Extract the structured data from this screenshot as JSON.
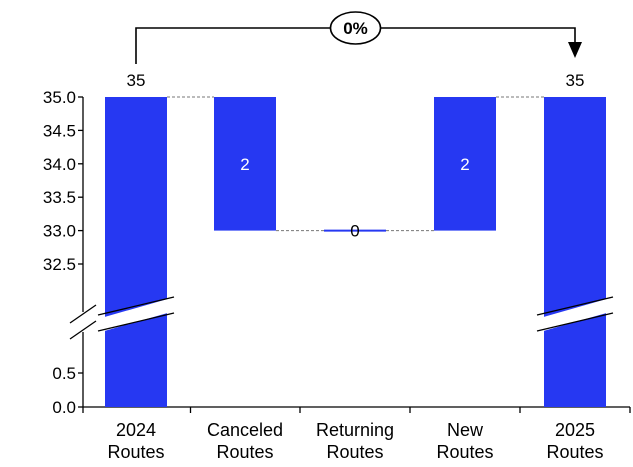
{
  "chart_data": {
    "type": "bar",
    "subtype": "waterfall-broken-axis",
    "title": "",
    "xlabel": "",
    "ylabel": "",
    "categories": [
      [
        "2024",
        "Routes"
      ],
      [
        "Canceled",
        "Routes"
      ],
      [
        "Returning",
        "Routes"
      ],
      [
        "New",
        "Routes"
      ],
      [
        "2025",
        "Routes"
      ]
    ],
    "steps": [
      {
        "kind": "total",
        "value": 35,
        "label": "35"
      },
      {
        "kind": "decrease",
        "value": 2,
        "label": "2"
      },
      {
        "kind": "increase",
        "value": 0,
        "label": "0"
      },
      {
        "kind": "increase",
        "value": 2,
        "label": "2"
      },
      {
        "kind": "total",
        "value": 35,
        "label": "35"
      }
    ],
    "y_ticks_upper": [
      "32.5",
      "33.0",
      "33.5",
      "34.0",
      "34.5",
      "35.0"
    ],
    "y_ticks_lower": [
      "0.0",
      "0.5"
    ],
    "y_upper_range": [
      32.5,
      35
    ],
    "y_lower_range": [
      0,
      0.5
    ],
    "y_break": true,
    "grid": false,
    "legend": "none",
    "delta_label": "0%",
    "bar_color": "#2638f2",
    "connector_color": "#777777",
    "axis_color": "#000000"
  }
}
